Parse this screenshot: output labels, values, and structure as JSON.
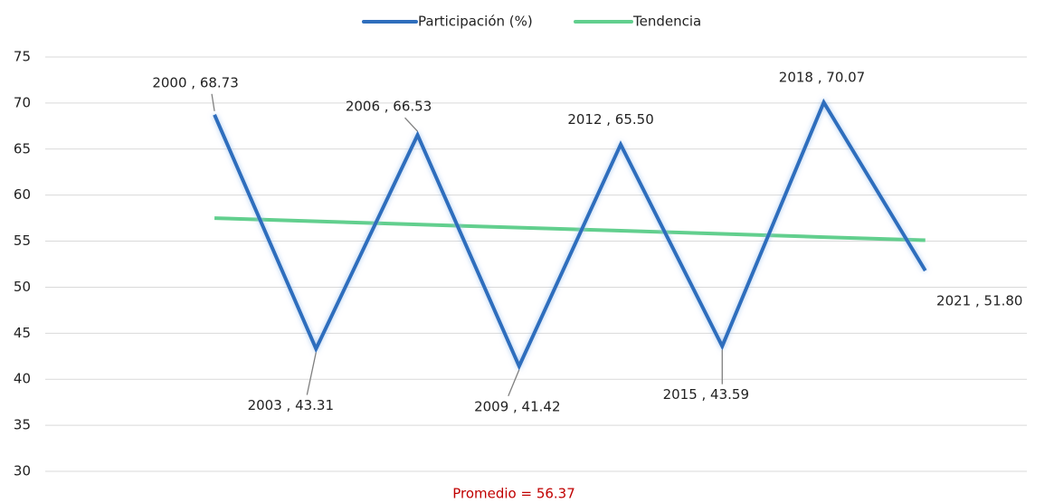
{
  "chart_data": {
    "type": "line",
    "x": [
      2000,
      2003,
      2006,
      2009,
      2012,
      2015,
      2018,
      2021
    ],
    "series": [
      {
        "name": "Participación (%)",
        "color": "#2f6ebd",
        "values": [
          68.73,
          43.31,
          66.53,
          41.42,
          65.5,
          43.59,
          70.07,
          51.8
        ],
        "value_labels": [
          "2000 , 68.73",
          "2003 , 43.31",
          "2006 , 66.53",
          "2009 , 41.42",
          "2012 , 65.50",
          "2015 , 43.59",
          "2018 , 70.07",
          "2021 , 51.80"
        ]
      },
      {
        "name": "Tendencia",
        "color": "#62cf8e",
        "values": [
          57.5,
          57.16,
          56.81,
          56.47,
          56.13,
          55.79,
          55.44,
          55.1
        ]
      }
    ],
    "annotation": "Promedio = 56.37",
    "xlim": [
      1995,
      2024
    ],
    "ylim": [
      30,
      75
    ],
    "yticks": [
      30,
      35,
      40,
      45,
      50,
      55,
      60,
      65,
      70,
      75
    ],
    "grid": true
  }
}
